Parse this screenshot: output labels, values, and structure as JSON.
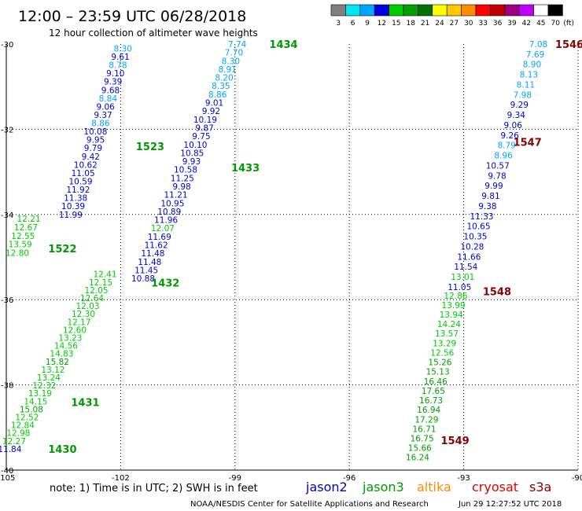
{
  "title": "12:00 – 23:59 UTC 06/28/2018",
  "subtitle": "12 hour collection of altimeter wave heights",
  "note": "note:  1) Time is in UTC;  2) SWH is in feet",
  "credit": "NOAA/NESDIS Center for Satellite Applications and Research",
  "timestamp": "Jun 29 12:27:52 UTC 2018",
  "missions": [
    {
      "name": "jason2",
      "color": "#0000cc"
    },
    {
      "name": "jason3",
      "color": "#009900"
    },
    {
      "name": "altika",
      "color": "#ff8c00"
    },
    {
      "name": "cryosat",
      "color": "#dd0000"
    },
    {
      "name": "s3a",
      "color": "#880000"
    }
  ],
  "colorbar": {
    "colors": [
      "#808080",
      "#00e5ee",
      "#00a5ff",
      "#0000dd",
      "#00cd00",
      "#00a000",
      "#007000",
      "#ffff00",
      "#ffc800",
      "#ff8c00",
      "#ff0000",
      "#c00000",
      "#a00080",
      "#c000ff",
      "#ffffff",
      "#000000"
    ],
    "labels": [
      "3",
      "6",
      "9",
      "12",
      "15",
      "18",
      "21",
      "24",
      "27",
      "30",
      "33",
      "36",
      "39",
      "42",
      "45",
      "70"
    ],
    "unit": "(ft)"
  },
  "chart_data": {
    "type": "scatter",
    "xlabel": "",
    "ylabel": "",
    "xlim": [
      -105,
      -90
    ],
    "ylim": [
      -40,
      -30
    ],
    "x_ticks": [
      "-105",
      "-102",
      "-99",
      "-96",
      "-93",
      "-90"
    ],
    "y_ticks": [
      "-30",
      "-32",
      "-34",
      "-36",
      "-38",
      "-40"
    ],
    "tracks": [
      {
        "lon_start": -101.7,
        "lat_start": -30.1,
        "lon_end": -103.0,
        "lat_end": -34.0,
        "values": [
          8.3,
          9.61,
          8.78,
          9.1,
          9.39,
          9.68,
          8.84,
          9.06,
          9.37,
          8.86,
          10.08,
          9.95,
          9.79,
          9.42,
          10.62,
          11.05,
          10.59,
          11.92,
          11.38,
          10.39,
          11.99
        ]
      },
      {
        "lon_start": -104.1,
        "lat_start": -34.1,
        "lon_end": -104.4,
        "lat_end": -34.9,
        "values": [
          12.21,
          12.67,
          12.55,
          13.59,
          12.8
        ]
      },
      {
        "lon_start": -102.1,
        "lat_start": -35.4,
        "lon_end": -104.6,
        "lat_end": -39.5,
        "values": [
          12.41,
          12.15,
          12.05,
          12.64,
          12.03,
          12.3,
          12.17,
          12.6,
          13.23,
          14.56,
          14.83,
          15.82,
          13.12,
          13.24,
          12.32,
          13.19,
          14.15,
          15.08,
          12.52,
          12.84,
          12.98,
          12.27,
          11.84
        ]
      },
      {
        "lon_start": -98.7,
        "lat_start": -30.0,
        "lon_end": -101.1,
        "lat_end": -35.5,
        "values": [
          7.74,
          7.7,
          8.3,
          8.91,
          8.2,
          8.35,
          8.86,
          9.01,
          9.92,
          10.19,
          9.87,
          9.75,
          10.1,
          10.85,
          9.93,
          10.58,
          11.25,
          9.98,
          11.21,
          10.95,
          10.89,
          11.96,
          12.07,
          11.69,
          11.62,
          11.48,
          11.48,
          11.45,
          10.88
        ]
      },
      {
        "lon_start": -90.8,
        "lat_start": -30.0,
        "lon_end": -92.8,
        "lat_end": -35.7,
        "values": [
          7.08,
          7.69,
          8.9,
          8.13,
          8.11,
          7.98,
          9.29,
          9.34,
          9.06,
          9.26,
          8.79,
          8.96,
          10.57,
          9.78,
          9.99,
          9.81,
          9.38,
          11.33,
          10.65,
          10.35,
          10.28,
          11.66,
          11.54,
          13.01,
          11.05
        ]
      },
      {
        "lon_start": -92.9,
        "lat_start": -35.9,
        "lon_end": -93.9,
        "lat_end": -39.7,
        "values": [
          12.86,
          13.99,
          13.94,
          14.24,
          13.57,
          13.29,
          12.56,
          15.26,
          15.13,
          16.46,
          17.65,
          16.73,
          16.94,
          17.29,
          16.71,
          16.75,
          15.66,
          16.24
        ]
      }
    ],
    "pass_labels": [
      {
        "text": "1434",
        "lon": -98.1,
        "lat": -30.0,
        "mission": "jason3"
      },
      {
        "text": "1523",
        "lon": -101.6,
        "lat": -32.4,
        "mission": "jason3"
      },
      {
        "text": "1433",
        "lon": -99.1,
        "lat": -32.9,
        "mission": "jason3"
      },
      {
        "text": "1522",
        "lon": -103.9,
        "lat": -34.8,
        "mission": "jason3"
      },
      {
        "text": "1432",
        "lon": -101.2,
        "lat": -35.6,
        "mission": "jason3"
      },
      {
        "text": "1431",
        "lon": -103.3,
        "lat": -38.4,
        "mission": "jason3"
      },
      {
        "text": "1430",
        "lon": -103.9,
        "lat": -39.5,
        "mission": "jason3"
      },
      {
        "text": "1546",
        "lon": -90.6,
        "lat": -30.0,
        "mission": "s3a"
      },
      {
        "text": "1547",
        "lon": -91.7,
        "lat": -32.3,
        "mission": "s3a"
      },
      {
        "text": "1548",
        "lon": -92.5,
        "lat": -35.8,
        "mission": "s3a"
      },
      {
        "text": "1549",
        "lon": -93.6,
        "lat": -39.3,
        "mission": "s3a"
      }
    ]
  }
}
